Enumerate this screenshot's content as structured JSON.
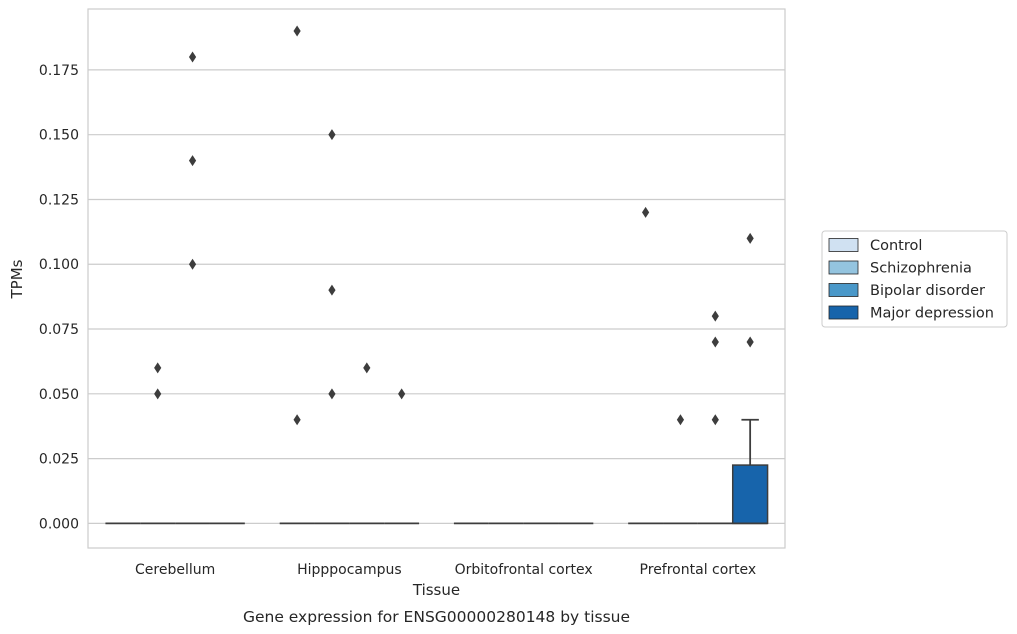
{
  "chart_data": {
    "type": "box",
    "title": "",
    "caption": "Gene expression for ENSG00000280148 by tissue",
    "xlabel": "Tissue",
    "ylabel": "TPMs",
    "ylim": [
      -0.0095,
      0.1985
    ],
    "yticks": [
      "0.000",
      "0.025",
      "0.050",
      "0.075",
      "0.100",
      "0.125",
      "0.150",
      "0.175"
    ],
    "ytick_values": [
      0,
      0.025,
      0.05,
      0.075,
      0.1,
      0.125,
      0.15,
      0.175
    ],
    "grid": true,
    "legend_position": "right",
    "categories": [
      "Cerebellum",
      "Hipppocampus",
      "Orbitofrontal cortex",
      "Prefrontal cortex"
    ],
    "series": [
      {
        "name": "Control",
        "color": "#d0e1f2",
        "boxes": [
          {
            "q1": 0,
            "median": 0,
            "q3": 0,
            "whisker_low": 0,
            "whisker_high": 0,
            "outliers": []
          },
          {
            "q1": 0,
            "median": 0,
            "q3": 0,
            "whisker_low": 0,
            "whisker_high": 0,
            "outliers": [
              0.04,
              0.19
            ]
          },
          {
            "q1": 0,
            "median": 0,
            "q3": 0,
            "whisker_low": 0,
            "whisker_high": 0,
            "outliers": []
          },
          {
            "q1": 0,
            "median": 0,
            "q3": 0,
            "whisker_low": 0,
            "whisker_high": 0,
            "outliers": [
              0.12
            ]
          }
        ]
      },
      {
        "name": "Schizophrenia",
        "color": "#94c4df",
        "boxes": [
          {
            "q1": 0,
            "median": 0,
            "q3": 0,
            "whisker_low": 0,
            "whisker_high": 0,
            "outliers": [
              0.05,
              0.06
            ]
          },
          {
            "q1": 0,
            "median": 0,
            "q3": 0,
            "whisker_low": 0,
            "whisker_high": 0,
            "outliers": [
              0.05,
              0.09,
              0.15
            ]
          },
          {
            "q1": 0,
            "median": 0,
            "q3": 0,
            "whisker_low": 0,
            "whisker_high": 0,
            "outliers": []
          },
          {
            "q1": 0,
            "median": 0,
            "q3": 0,
            "whisker_low": 0,
            "whisker_high": 0,
            "outliers": [
              0.04
            ]
          }
        ]
      },
      {
        "name": "Bipolar disorder",
        "color": "#4a98c9",
        "boxes": [
          {
            "q1": 0,
            "median": 0,
            "q3": 0,
            "whisker_low": 0,
            "whisker_high": 0,
            "outliers": [
              0.1,
              0.14,
              0.18
            ]
          },
          {
            "q1": 0,
            "median": 0,
            "q3": 0,
            "whisker_low": 0,
            "whisker_high": 0,
            "outliers": [
              0.06
            ]
          },
          {
            "q1": 0,
            "median": 0,
            "q3": 0,
            "whisker_low": 0,
            "whisker_high": 0,
            "outliers": []
          },
          {
            "q1": 0,
            "median": 0,
            "q3": 0,
            "whisker_low": 0,
            "whisker_high": 0,
            "outliers": [
              0.04,
              0.07,
              0.08
            ]
          }
        ]
      },
      {
        "name": "Major depression",
        "color": "#1764ab",
        "boxes": [
          {
            "q1": 0,
            "median": 0,
            "q3": 0,
            "whisker_low": 0,
            "whisker_high": 0,
            "outliers": []
          },
          {
            "q1": 0,
            "median": 0,
            "q3": 0,
            "whisker_low": 0,
            "whisker_high": 0,
            "outliers": [
              0.05
            ]
          },
          {
            "q1": 0,
            "median": 0,
            "q3": 0,
            "whisker_low": 0,
            "whisker_high": 0,
            "outliers": []
          },
          {
            "q1": 0,
            "median": 0,
            "q3": 0.0225,
            "whisker_low": 0,
            "whisker_high": 0.04,
            "outliers": [
              0.07,
              0.11
            ]
          }
        ]
      }
    ]
  }
}
